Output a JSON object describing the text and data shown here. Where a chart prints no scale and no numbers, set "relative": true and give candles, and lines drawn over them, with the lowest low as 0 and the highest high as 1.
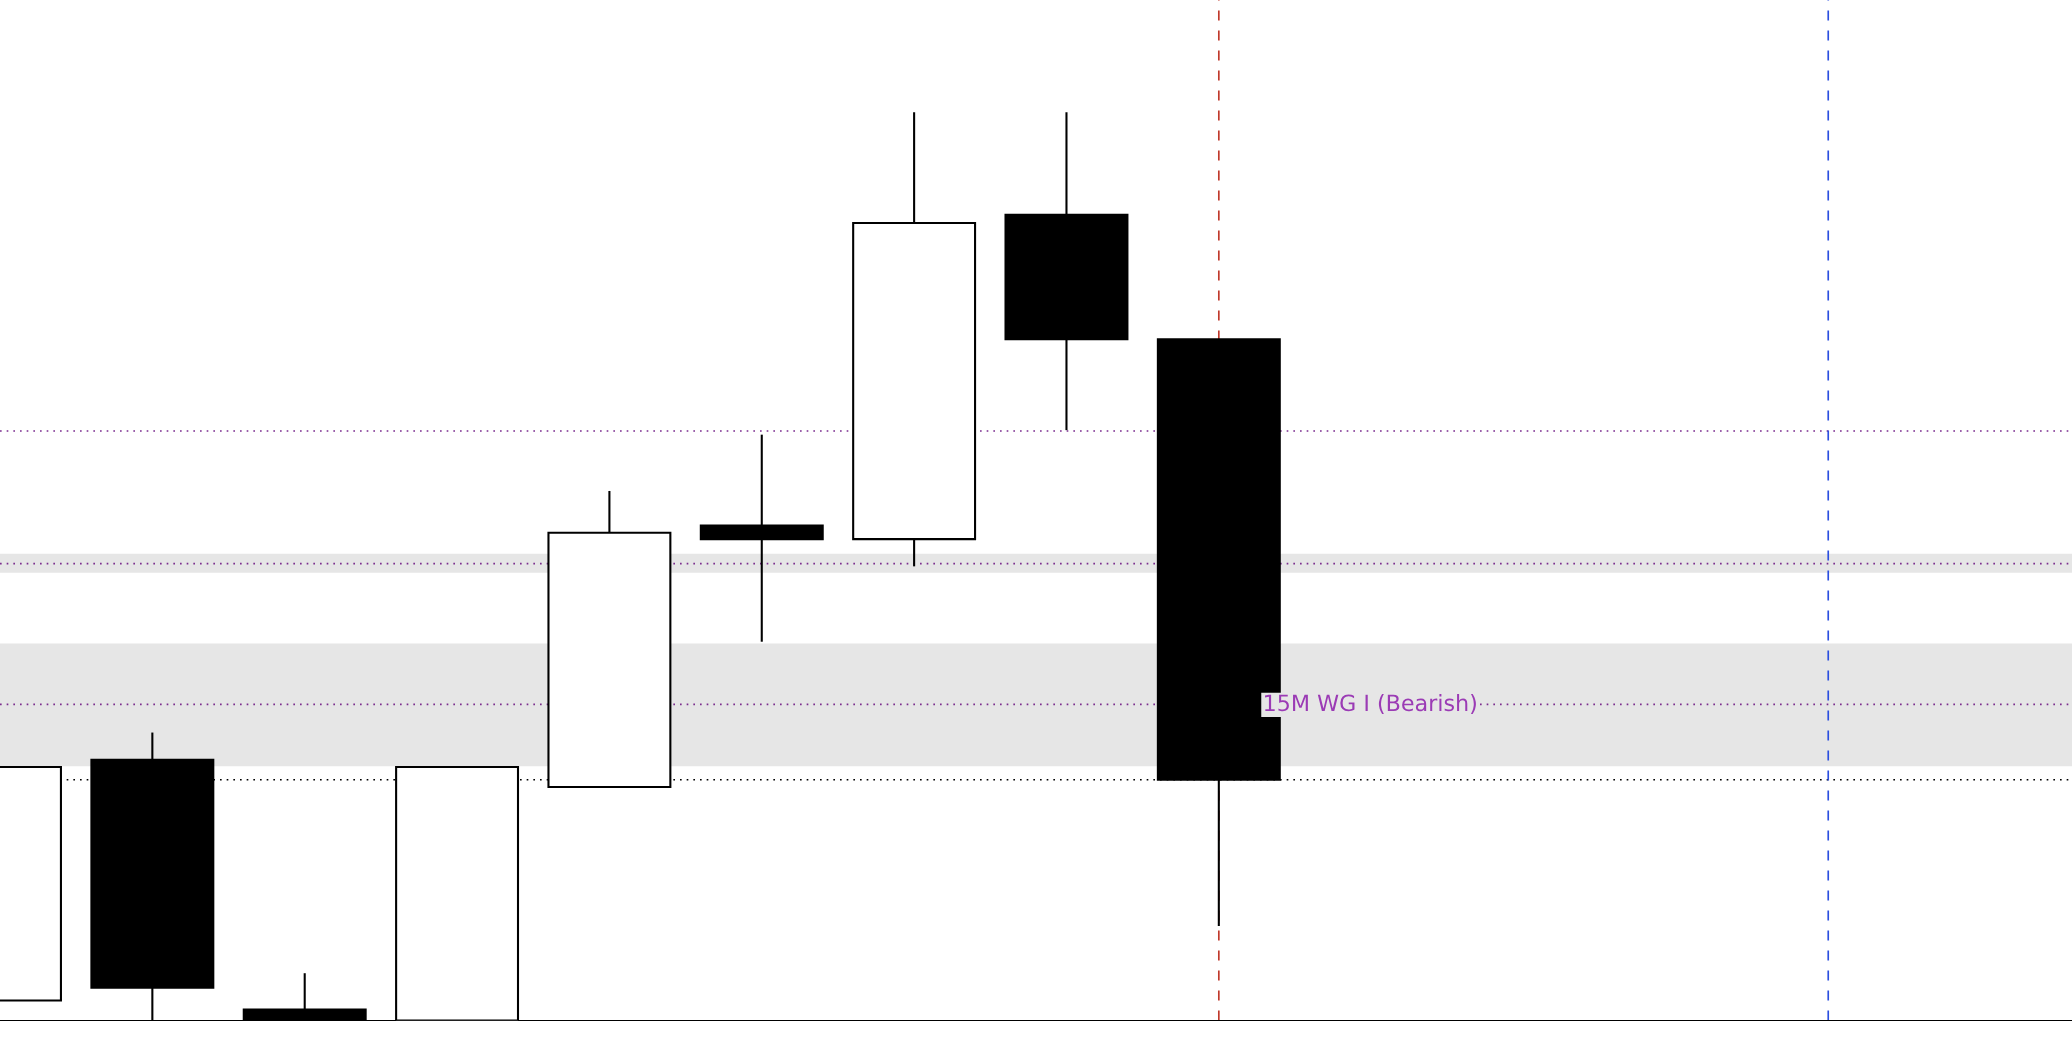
{
  "chart_data": {
    "type": "candlestick",
    "relative": true,
    "categories": [
      null,
      null,
      null,
      null,
      null,
      null,
      null,
      null,
      null,
      null,
      null,
      null,
      null
    ],
    "ohlc": [
      [
        0.022,
        0.279,
        0.022,
        0.279
      ],
      [
        0.287,
        0.317,
        0,
        0.036
      ],
      [
        0.012,
        0.052,
        0,
        0
      ],
      [
        0,
        0.279,
        0,
        0.279
      ],
      [
        0.257,
        0.583,
        0.257,
        0.537
      ],
      [
        0.545,
        0.645,
        0.417,
        0.53
      ],
      [
        0.53,
        1.0,
        0.5,
        0.878
      ],
      [
        0.887,
        1.0,
        0.65,
        0.75
      ],
      [
        0.75,
        0.75,
        0.104,
        0.265
      ],
      null,
      null,
      null,
      null
    ],
    "colors": [
      "#ffffff",
      "#000000",
      "#000000",
      "#ffffff",
      "#ffffff",
      "#000000",
      "#ffffff",
      "#000000",
      "#000000",
      null,
      null,
      null,
      null
    ],
    "bands": [
      {
        "axis": "y",
        "from": 0.28,
        "to": 0.415,
        "label": "15M WG I (Bearish)",
        "color": "#e6e6e6"
      },
      {
        "axis": "y",
        "from": 0.493,
        "to": 0.514,
        "color": "#e6e6e6"
      }
    ],
    "ref_lines": [
      {
        "axis": "y",
        "value": 0.265,
        "color": "#000000",
        "line_style": "dotted"
      },
      {
        "axis": "y",
        "value": 0.348,
        "color": "#7b2d8e",
        "line_style": "dotted"
      },
      {
        "axis": "y",
        "value": 0.503,
        "color": "#7b2d8e",
        "line_style": "dotted"
      },
      {
        "axis": "y",
        "value": 0.649,
        "color": "#7b2d8e",
        "line_style": "dotted"
      }
    ]
  }
}
